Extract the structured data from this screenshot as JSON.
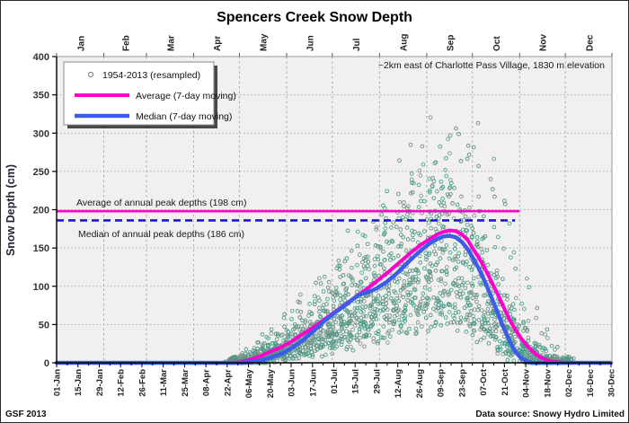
{
  "footer": {
    "left": "GSF 2013",
    "right": "Data source: Snowy Hydro Limited"
  },
  "chart_data": {
    "type": "scatter",
    "title": "Spencers Creek Snow Depth",
    "annotation": "~2km east of Charlotte Pass Village, 1830 m elevation",
    "ylabel": "Snow Depth (cm)",
    "ylim": [
      0,
      400
    ],
    "yticks": [
      0,
      50,
      100,
      150,
      200,
      250,
      300,
      350,
      400
    ],
    "x_tick_labels": [
      "01-Jan",
      "15-Jan",
      "29-Jan",
      "12-Feb",
      "26-Feb",
      "11-Mar",
      "25-Mar",
      "08-Apr",
      "22-Apr",
      "06-May",
      "20-May",
      "03-Jun",
      "17-Jun",
      "01-Jul",
      "15-Jul",
      "29-Jul",
      "12-Aug",
      "26-Aug",
      "09-Sep",
      "23-Sep",
      "07-Oct",
      "21-Oct",
      "04-Nov",
      "18-Nov",
      "02-Dec",
      "16-Dec",
      "30-Dec"
    ],
    "x_tick_interval_days": 14,
    "month_labels": [
      "Jan",
      "Feb",
      "Mar",
      "Apr",
      "May",
      "Jun",
      "Jul",
      "Aug",
      "Sep",
      "Oct",
      "Nov",
      "Dec"
    ],
    "month_start_days": [
      1,
      32,
      60,
      91,
      121,
      152,
      182,
      213,
      244,
      274,
      305,
      335
    ],
    "grid": "both",
    "legend": [
      "1954-2013 (resampled)",
      "Average (7-day moving)",
      "Median (7-day moving)"
    ],
    "legend_position": "top-left",
    "ref_lines": [
      {
        "label": "Average of annual peak depths (198 cm)",
        "value": 198,
        "style": "solid",
        "color": "#ff00cc",
        "start_day": 1,
        "end_day": 305
      },
      {
        "label": "Median of annual peak depths (186 cm)",
        "value": 186,
        "style": "dashed",
        "color": "#1a1acc",
        "start_day": 1,
        "end_day": 302
      }
    ],
    "series": [
      {
        "name": "Average (7-day moving)",
        "color": "#ff00cc",
        "width": 4,
        "points": [
          [
            1,
            0
          ],
          [
            30,
            0
          ],
          [
            60,
            0
          ],
          [
            91,
            0
          ],
          [
            105,
            0
          ],
          [
            115,
            0
          ],
          [
            121,
            1
          ],
          [
            128,
            4
          ],
          [
            135,
            9
          ],
          [
            142,
            15
          ],
          [
            149,
            21
          ],
          [
            156,
            29
          ],
          [
            163,
            38
          ],
          [
            170,
            47
          ],
          [
            177,
            57
          ],
          [
            184,
            67
          ],
          [
            191,
            77
          ],
          [
            198,
            87
          ],
          [
            205,
            97
          ],
          [
            212,
            108
          ],
          [
            219,
            119
          ],
          [
            226,
            131
          ],
          [
            233,
            143
          ],
          [
            240,
            154
          ],
          [
            247,
            163
          ],
          [
            251,
            168
          ],
          [
            255,
            171
          ],
          [
            259,
            173
          ],
          [
            263,
            172
          ],
          [
            267,
            168
          ],
          [
            271,
            160
          ],
          [
            274,
            150
          ],
          [
            278,
            138
          ],
          [
            282,
            124
          ],
          [
            286,
            108
          ],
          [
            290,
            92
          ],
          [
            294,
            75
          ],
          [
            298,
            58
          ],
          [
            302,
            44
          ],
          [
            306,
            32
          ],
          [
            310,
            22
          ],
          [
            314,
            14
          ],
          [
            318,
            8
          ],
          [
            322,
            4
          ],
          [
            326,
            2
          ],
          [
            330,
            1
          ],
          [
            335,
            0
          ],
          [
            350,
            0
          ],
          [
            365,
            0
          ]
        ]
      },
      {
        "name": "Median (7-day moving)",
        "color": "#3c5de8",
        "width": 4.5,
        "points": [
          [
            1,
            0
          ],
          [
            60,
            0
          ],
          [
            91,
            0
          ],
          [
            115,
            0
          ],
          [
            121,
            0
          ],
          [
            128,
            1
          ],
          [
            135,
            3
          ],
          [
            142,
            7
          ],
          [
            149,
            12
          ],
          [
            156,
            20
          ],
          [
            163,
            30
          ],
          [
            170,
            42
          ],
          [
            177,
            55
          ],
          [
            184,
            66
          ],
          [
            191,
            76
          ],
          [
            196,
            84
          ],
          [
            201,
            90
          ],
          [
            206,
            93
          ],
          [
            211,
            97
          ],
          [
            218,
            106
          ],
          [
            225,
            118
          ],
          [
            232,
            132
          ],
          [
            239,
            145
          ],
          [
            246,
            156
          ],
          [
            251,
            162
          ],
          [
            255,
            165
          ],
          [
            259,
            166
          ],
          [
            263,
            164
          ],
          [
            267,
            158
          ],
          [
            271,
            148
          ],
          [
            274,
            138
          ],
          [
            278,
            124
          ],
          [
            282,
            107
          ],
          [
            286,
            88
          ],
          [
            290,
            68
          ],
          [
            294,
            48
          ],
          [
            298,
            30
          ],
          [
            302,
            15
          ],
          [
            306,
            6
          ],
          [
            310,
            2
          ],
          [
            313,
            0
          ],
          [
            320,
            0
          ],
          [
            335,
            0
          ],
          [
            365,
            0
          ]
        ]
      }
    ],
    "scatter": {
      "name": "1954-2013 (resampled)",
      "marker": "hollow-circle",
      "marker_radius": 1.9,
      "stroke_palette": [
        "#6b8e86",
        "#55907f",
        "#3f9f88",
        "#7d988f",
        "#4aa392"
      ],
      "seed": 20130913,
      "years": 58,
      "season_days": [
        114,
        338
      ],
      "interval_days": 7,
      "max_value": 362
    },
    "plot_bg": "#f1f0ee",
    "axis_color": "#000000",
    "gridline_color": "#ababab"
  }
}
